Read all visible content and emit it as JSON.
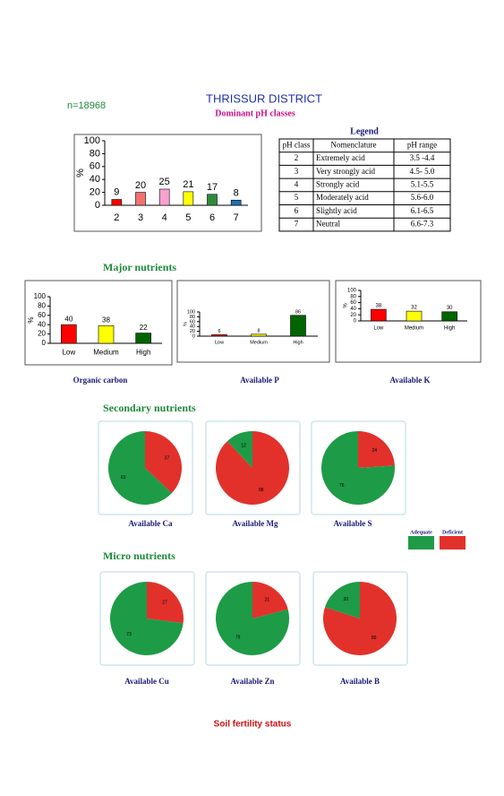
{
  "header": {
    "title": "THRISSUR DISTRICT",
    "sample_count": "n=18968",
    "footer": "Soil fertility status"
  },
  "legend": {
    "title": "Legend",
    "columns": [
      "pH class",
      "Nomenclature",
      "pH range"
    ],
    "rows": [
      [
        "2",
        "Extremely acid",
        "3.5 -4.4"
      ],
      [
        "3",
        "Very strongly acid",
        "4.5- 5.0"
      ],
      [
        "4",
        "Strongly acid",
        "5.1-5.5"
      ],
      [
        "5",
        "Moderately acid",
        "5.6-6.0"
      ],
      [
        "6",
        "Slightly acid",
        "6.1-6.5"
      ],
      [
        "7",
        "Neutral",
        "6.6-7.3"
      ]
    ]
  },
  "sections": [
    "Major nutrients",
    "Secondary nutrients",
    "Micro nutrients"
  ],
  "pie_legend": {
    "labels": [
      "Adequate",
      "Deficient"
    ],
    "colors": [
      "#1e9b47",
      "#e2312b"
    ]
  },
  "chart_data": [
    {
      "type": "bar",
      "title": "Dominant pH classes",
      "ylabel": "%",
      "categories": [
        "2",
        "3",
        "4",
        "5",
        "6",
        "7"
      ],
      "values": [
        9,
        20,
        25,
        21,
        17,
        8
      ],
      "colors": [
        "#ff0000",
        "#f27272",
        "#f7a1d0",
        "#ffff00",
        "#2e8b3a",
        "#1f6fb5"
      ],
      "ylim": [
        0,
        100
      ],
      "yticks": [
        0,
        20,
        40,
        60,
        80,
        100
      ]
    },
    {
      "type": "bar",
      "title": "Organic carbon",
      "ylabel": "%",
      "categories": [
        "Low",
        "Medium",
        "High"
      ],
      "values": [
        40,
        38,
        22
      ],
      "colors": [
        "#ff0000",
        "#ffff00",
        "#006400"
      ],
      "ylim": [
        0,
        100
      ],
      "yticks": [
        0,
        20,
        40,
        60,
        80,
        100
      ]
    },
    {
      "type": "bar",
      "title": "Available  P",
      "ylabel": "%",
      "categories": [
        "Low",
        "Medium",
        "High"
      ],
      "values": [
        6,
        8,
        86
      ],
      "colors": [
        "#ff0000",
        "#ffff00",
        "#006400"
      ],
      "ylim": [
        0,
        100
      ],
      "yticks": [
        0,
        20,
        40,
        60,
        80,
        100
      ]
    },
    {
      "type": "bar",
      "title": "Available  K",
      "ylabel": "%",
      "categories": [
        "Low",
        "Medium",
        "High"
      ],
      "values": [
        38,
        32,
        30
      ],
      "colors": [
        "#ff0000",
        "#ffff00",
        "#006400"
      ],
      "ylim": [
        0,
        100
      ],
      "yticks": [
        0,
        20,
        40,
        60,
        80,
        100
      ]
    },
    {
      "type": "pie",
      "title": "Available  Ca",
      "values": [
        63,
        37
      ]
    },
    {
      "type": "pie",
      "title": "Available  Mg",
      "values": [
        12,
        88
      ]
    },
    {
      "type": "pie",
      "title": "Available  S",
      "values": [
        76,
        24
      ]
    },
    {
      "type": "pie",
      "title": "Available Cu",
      "values": [
        73,
        27
      ]
    },
    {
      "type": "pie",
      "title": "Available  Zn",
      "values": [
        79,
        21
      ]
    },
    {
      "type": "pie",
      "title": "Available  B",
      "values": [
        20,
        80
      ]
    }
  ]
}
